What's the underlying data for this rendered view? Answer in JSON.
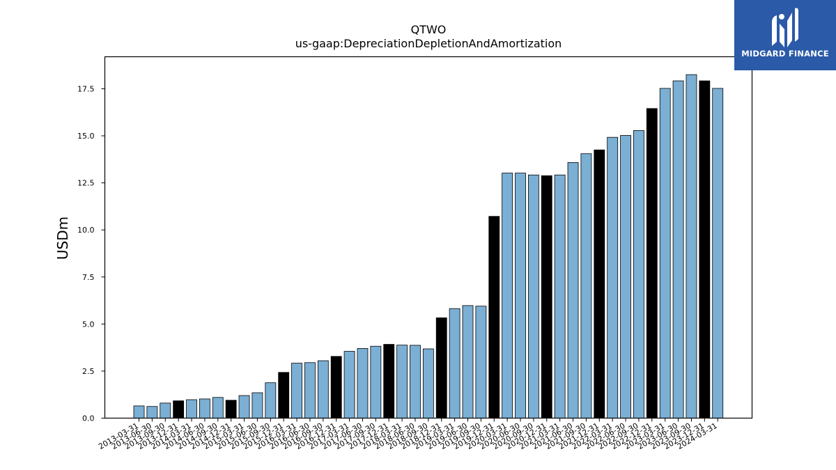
{
  "chart_data": {
    "type": "bar",
    "title": "QTWO",
    "subtitle": "us-gaap:DepreciationDepletionAndAmortization",
    "ylabel": "USDm",
    "xlabel": "",
    "ylim": [
      0,
      19.2
    ],
    "yticks": [
      "0.0",
      "2.5",
      "5.0",
      "7.5",
      "10.0",
      "12.5",
      "15.0",
      "17.5"
    ],
    "colors": {
      "quarter": "#7bafd4",
      "year_end": "#000000",
      "edge": "#000000"
    },
    "categories": [
      "2013-03-31",
      "2013-06-30",
      "2013-09-30",
      "2013-12-31",
      "2014-03-31",
      "2014-06-30",
      "2014-09-30",
      "2014-12-31",
      "2015-03-31",
      "2015-06-30",
      "2015-09-30",
      "2015-12-31",
      "2016-03-31",
      "2016-06-30",
      "2016-09-30",
      "2016-12-31",
      "2017-03-31",
      "2017-06-30",
      "2017-09-30",
      "2017-12-31",
      "2018-03-31",
      "2018-06-30",
      "2018-09-30",
      "2018-12-31",
      "2019-03-31",
      "2019-06-30",
      "2019-09-30",
      "2019-12-31",
      "2020-03-31",
      "2020-06-30",
      "2020-09-30",
      "2020-12-31",
      "2021-03-31",
      "2021-06-30",
      "2021-09-30",
      "2021-12-31",
      "2022-03-31",
      "2022-06-30",
      "2022-09-30",
      "2022-12-31",
      "2023-03-31",
      "2023-06-30",
      "2023-09-30",
      "2023-12-31",
      "2024-03-31"
    ],
    "values": [
      0.65,
      0.62,
      0.8,
      0.92,
      0.98,
      1.02,
      1.1,
      0.95,
      1.2,
      1.35,
      1.88,
      2.43,
      2.92,
      2.95,
      3.05,
      3.28,
      3.55,
      3.7,
      3.82,
      3.92,
      3.88,
      3.87,
      3.68,
      5.33,
      5.82,
      5.98,
      5.95,
      10.72,
      13.02,
      13.02,
      12.92,
      12.88,
      12.92,
      13.58,
      14.05,
      14.25,
      14.92,
      15.02,
      15.28,
      16.45,
      17.52,
      17.92,
      18.25,
      17.92,
      17.52
    ],
    "highlight": [
      false,
      false,
      false,
      true,
      false,
      false,
      false,
      true,
      false,
      false,
      false,
      true,
      false,
      false,
      false,
      true,
      false,
      false,
      false,
      true,
      false,
      false,
      false,
      true,
      false,
      false,
      false,
      true,
      false,
      false,
      false,
      true,
      false,
      false,
      false,
      true,
      false,
      false,
      false,
      true,
      false,
      false,
      false,
      true,
      false
    ]
  },
  "logo": {
    "text": "MIDGARD FINANCE",
    "icon": "midgard-logo-icon",
    "background": "#2a5aa8"
  }
}
